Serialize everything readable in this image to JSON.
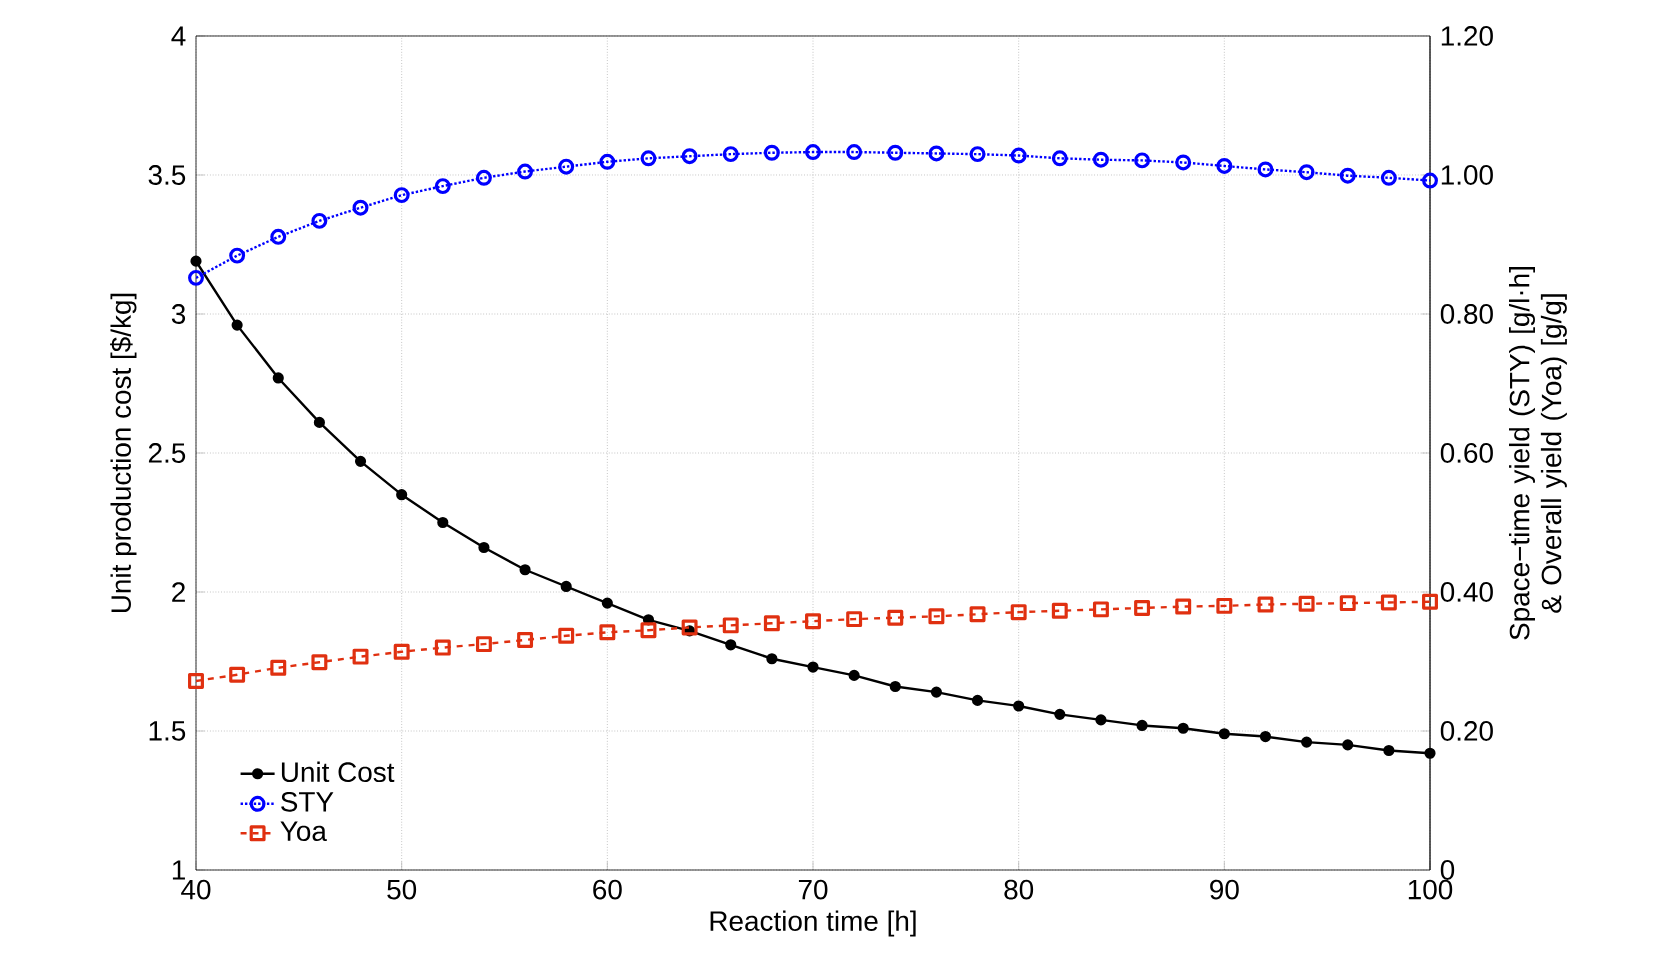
{
  "chart_data": {
    "type": "line",
    "xlabel": "Reaction time [h]",
    "ylabel": "Unit production cost [$/kg]",
    "y2label": "Space−time yield (STY) [g/l·h] & Overall yield (Yoa) [g/g]",
    "x": [
      40,
      42,
      44,
      46,
      48,
      50,
      52,
      54,
      56,
      58,
      60,
      62,
      64,
      66,
      68,
      70,
      72,
      74,
      76,
      78,
      80,
      82,
      84,
      86,
      88,
      90,
      92,
      94,
      96,
      98,
      100
    ],
    "series": [
      {
        "name": "Unit Cost",
        "color": "#000000",
        "marker": "circle",
        "line_style": "solid",
        "values": [
          3.19,
          2.96,
          2.77,
          2.61,
          2.47,
          2.35,
          2.25,
          2.16,
          2.08,
          2.02,
          1.96,
          1.9,
          1.86,
          1.81,
          1.76,
          1.73,
          1.7,
          1.66,
          1.64,
          1.61,
          1.59,
          1.56,
          1.54,
          1.52,
          1.51,
          1.49,
          1.48,
          1.46,
          1.45,
          1.43,
          1.42
        ]
      },
      {
        "name": "STY",
        "color": "#0000ff",
        "marker": "circle",
        "line_style": "dotted",
        "axis": "y2",
        "values": [
          0.852,
          0.884,
          0.911,
          0.934,
          0.953,
          0.971,
          0.984,
          0.996,
          1.005,
          1.012,
          1.019,
          1.024,
          1.027,
          1.03,
          1.032,
          1.033,
          1.033,
          1.032,
          1.031,
          1.03,
          1.028,
          1.024,
          1.022,
          1.021,
          1.018,
          1.013,
          1.008,
          1.004,
          0.999,
          0.996,
          0.992
        ]
      },
      {
        "name": "Yoa",
        "color": "#e03010",
        "marker": "square",
        "line_style": "dashed",
        "axis": "y2",
        "values": [
          0.272,
          0.281,
          0.291,
          0.299,
          0.307,
          0.314,
          0.32,
          0.325,
          0.331,
          0.337,
          0.342,
          0.345,
          0.349,
          0.352,
          0.355,
          0.358,
          0.361,
          0.363,
          0.365,
          0.368,
          0.371,
          0.373,
          0.375,
          0.377,
          0.379,
          0.38,
          0.382,
          0.383,
          0.384,
          0.385,
          0.386
        ]
      }
    ],
    "xlim": [
      40,
      100
    ],
    "xticks": [
      40,
      50,
      60,
      70,
      80,
      90,
      100
    ],
    "ylim": [
      1,
      4
    ],
    "yticks": [
      1,
      1.5,
      2,
      2.5,
      3,
      3.5,
      4
    ],
    "y2lim": [
      0,
      1.2
    ],
    "y2ticks": [
      0,
      {
        "value": 0.2,
        "label": "0.20"
      },
      {
        "value": 0.4,
        "label": "0.40"
      },
      {
        "value": 0.6,
        "label": "0.60"
      },
      {
        "value": 0.8,
        "label": "0.80"
      },
      {
        "value": 1.0,
        "label": "1.00"
      },
      {
        "value": 1.2,
        "label": "1.20"
      }
    ],
    "grid": true,
    "legend": "bottom left"
  }
}
